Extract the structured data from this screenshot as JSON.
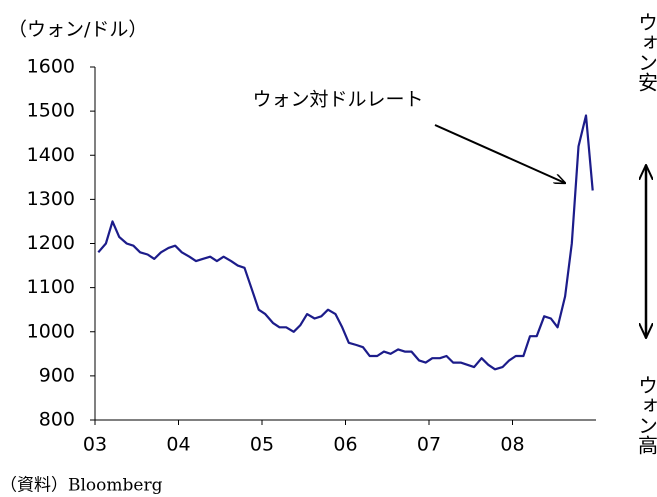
{
  "chart_data": {
    "type": "line",
    "y_axis_label": "（ウォン/ドル）",
    "right_top_label": "ウォン安",
    "right_bottom_label": "ウォン高",
    "source": "（資料）Bloomberg",
    "xlim": [
      2003,
      2009
    ],
    "xticks": [
      {
        "value": 2003,
        "label": "03"
      },
      {
        "value": 2004,
        "label": "04"
      },
      {
        "value": 2005,
        "label": "05"
      },
      {
        "value": 2006,
        "label": "06"
      },
      {
        "value": 2007,
        "label": "07"
      },
      {
        "value": 2008,
        "label": "08"
      }
    ],
    "ylim": [
      800,
      1600
    ],
    "yticks": [
      800,
      900,
      1000,
      1100,
      1200,
      1300,
      1400,
      1500,
      1600
    ],
    "x": [
      2003.04,
      2003.13,
      2003.21,
      2003.29,
      2003.38,
      2003.46,
      2003.54,
      2003.63,
      2003.71,
      2003.79,
      2003.88,
      2003.96,
      2004.04,
      2004.13,
      2004.21,
      2004.29,
      2004.38,
      2004.46,
      2004.54,
      2004.63,
      2004.71,
      2004.79,
      2004.88,
      2004.96,
      2005.04,
      2005.13,
      2005.21,
      2005.29,
      2005.38,
      2005.46,
      2005.54,
      2005.63,
      2005.71,
      2005.79,
      2005.88,
      2005.96,
      2006.04,
      2006.13,
      2006.21,
      2006.29,
      2006.38,
      2006.46,
      2006.54,
      2006.63,
      2006.71,
      2006.79,
      2006.88,
      2006.96,
      2007.04,
      2007.13,
      2007.21,
      2007.29,
      2007.38,
      2007.46,
      2007.54,
      2007.63,
      2007.71,
      2007.79,
      2007.88,
      2007.96,
      2008.04,
      2008.13,
      2008.21,
      2008.29,
      2008.38,
      2008.46,
      2008.54,
      2008.63,
      2008.71,
      2008.79,
      2008.88,
      2008.96
    ],
    "series": [
      {
        "name": "ウォン対ドルレート",
        "color": "#1c1c8a",
        "values": [
          1180,
          1200,
          1250,
          1215,
          1200,
          1195,
          1180,
          1175,
          1165,
          1180,
          1190,
          1195,
          1180,
          1170,
          1160,
          1165,
          1170,
          1160,
          1170,
          1160,
          1150,
          1145,
          1095,
          1050,
          1040,
          1020,
          1010,
          1010,
          1000,
          1015,
          1040,
          1030,
          1035,
          1050,
          1040,
          1010,
          975,
          970,
          965,
          945,
          945,
          955,
          950,
          960,
          955,
          955,
          935,
          930,
          940,
          940,
          945,
          930,
          930,
          925,
          920,
          940,
          925,
          915,
          920,
          935,
          945,
          945,
          990,
          990,
          1035,
          1030,
          1010,
          1080,
          1200,
          1420,
          1490,
          1320
        ]
      }
    ]
  }
}
